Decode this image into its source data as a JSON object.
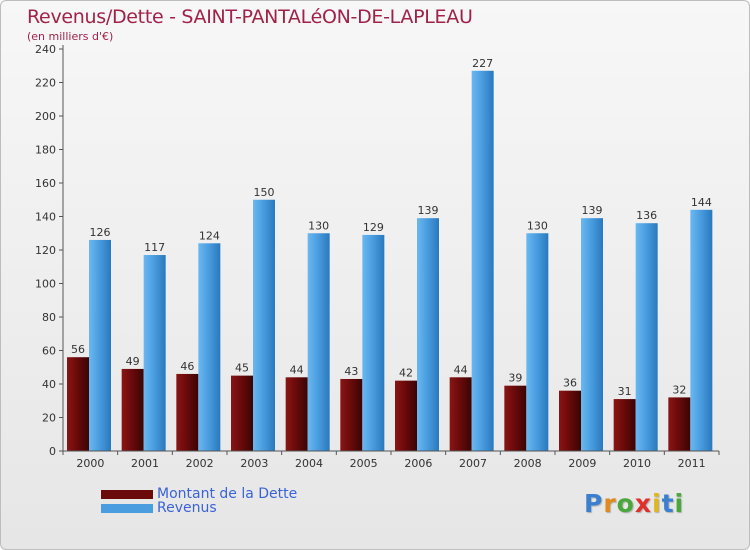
{
  "header": {
    "title": "Revenus/Dette - SAINT-PANTALéON-DE-LAPLEAU",
    "subtitle": "(en milliers d'€)"
  },
  "colors": {
    "dette": "#6b0a0a",
    "revenus": "#4a9ee0"
  },
  "legend": {
    "items": [
      {
        "label": "Montant de la Dette",
        "color": "#6b0a0a"
      },
      {
        "label": "Revenus",
        "color": "#4a9ee0"
      }
    ]
  },
  "brand": {
    "letters": [
      {
        "ch": "P",
        "color": "#3b7fd0"
      },
      {
        "ch": "r",
        "color": "#e08a1e"
      },
      {
        "ch": "o",
        "color": "#4aa83a"
      },
      {
        "ch": "x",
        "color": "#e0302a"
      },
      {
        "ch": "i",
        "color": "#e0b71e"
      },
      {
        "ch": "t",
        "color": "#3b7fd0"
      },
      {
        "ch": "i",
        "color": "#4aa83a"
      }
    ]
  },
  "chart_data": {
    "type": "bar",
    "title": "Revenus/Dette - SAINT-PANTALéON-DE-LAPLEAU",
    "subtitle": "(en milliers d'€)",
    "xlabel": "",
    "ylabel": "",
    "categories": [
      "2000",
      "2001",
      "2002",
      "2003",
      "2004",
      "2005",
      "2006",
      "2007",
      "2008",
      "2009",
      "2010",
      "2011"
    ],
    "series": [
      {
        "name": "Montant de la Dette",
        "values": [
          56,
          49,
          46,
          45,
          44,
          43,
          42,
          44,
          39,
          36,
          31,
          32
        ]
      },
      {
        "name": "Revenus",
        "values": [
          126,
          117,
          124,
          150,
          130,
          129,
          139,
          227,
          130,
          139,
          136,
          144
        ]
      }
    ],
    "ylim": [
      0,
      240
    ],
    "yticks": [
      0,
      20,
      40,
      60,
      80,
      100,
      120,
      140,
      160,
      180,
      200,
      220,
      240
    ],
    "grid": false,
    "legend_position": "bottom-left",
    "data_labels": true
  }
}
